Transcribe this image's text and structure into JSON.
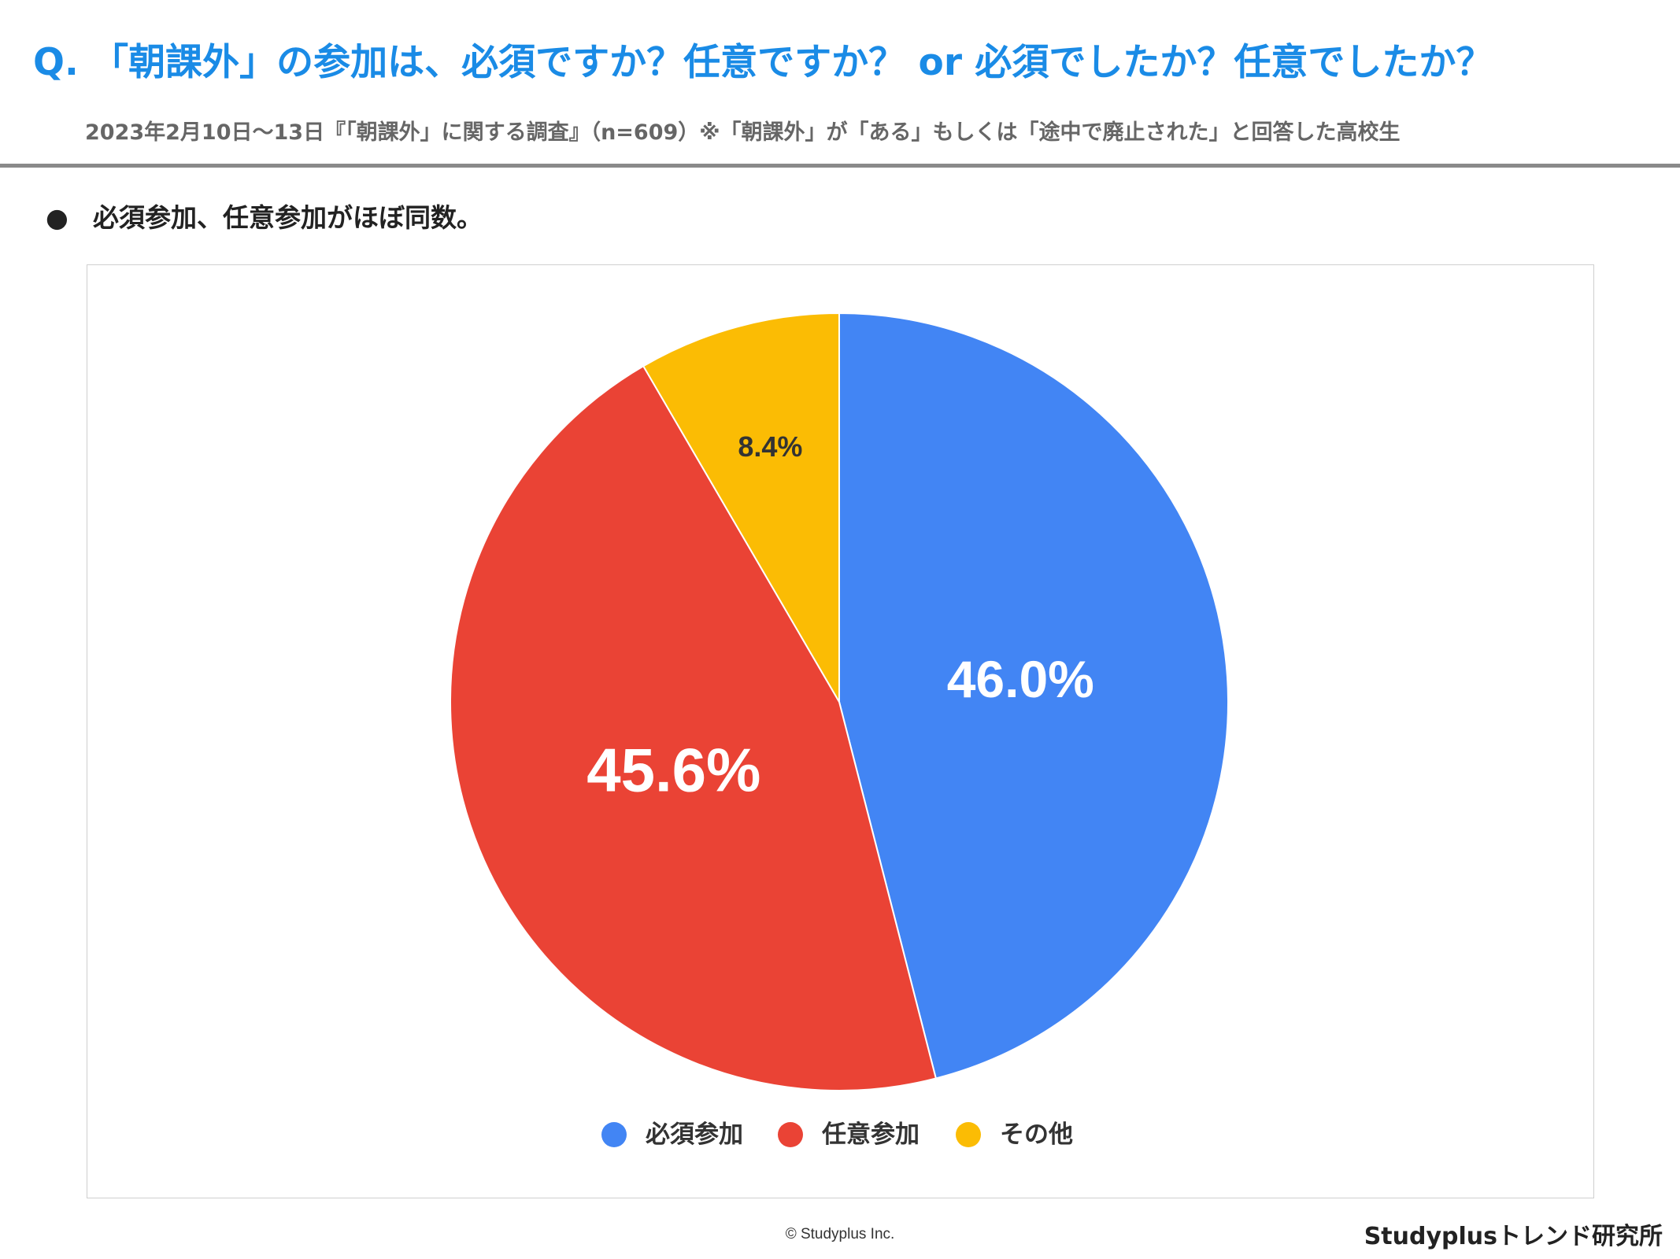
{
  "header": {
    "title": "Q. 「朝課外」の参加は、必須ですか？任意ですか？ or 必須でしたか？任意でしたか？",
    "subtitle": "2023年2月10日～13日『「朝課外」に関する調査』（n=609）※「朝課外」が「ある」もしくは「途中で廃止された」と回答した高校生"
  },
  "summary": {
    "bullet": "●",
    "text": "必須参加、任意参加がほぼ同数。"
  },
  "chart_data": {
    "type": "pie",
    "start_angle_deg": 0,
    "direction": "clockwise",
    "legend_position": "bottom",
    "slices": [
      {
        "name": "必須参加",
        "value": 46.0,
        "label": "46.0%",
        "color": "#4285f4",
        "label_color": "#ffffff"
      },
      {
        "name": "任意参加",
        "value": 45.6,
        "label": "45.6%",
        "color": "#ea4335",
        "label_color": "#ffffff"
      },
      {
        "name": "その他",
        "value": 8.4,
        "label": "8.4%",
        "color": "#fbbc04",
        "label_color": "#333333"
      }
    ]
  },
  "footer": {
    "copyright": "© Studyplus Inc.",
    "brand": "Studyplusトレンド研究所"
  }
}
